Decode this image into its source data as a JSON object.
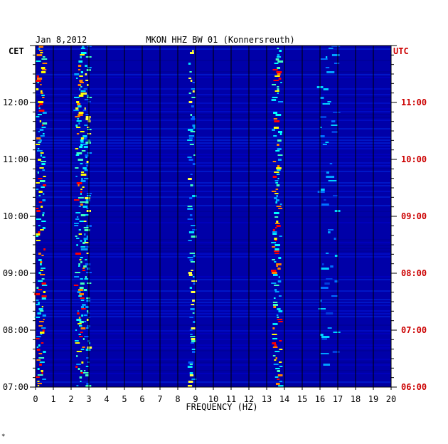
{
  "chart_data": {
    "type": "heatmap",
    "date_label": "Jan 8,2012",
    "title": "MKON HHZ BW 01 (Konnersreuth)",
    "xlabel": "FREQUENCY (HZ)",
    "left_axis_label": "CET",
    "right_axis_label": "UTC",
    "xlim": [
      0,
      20
    ],
    "x_ticks": [
      "0",
      "1",
      "2",
      "3",
      "4",
      "5",
      "6",
      "7",
      "8",
      "9",
      "10",
      "11",
      "12",
      "13",
      "14",
      "15",
      "16",
      "17",
      "18",
      "19",
      "20"
    ],
    "left_time_range": [
      "07:00",
      "13:00"
    ],
    "left_ticks": [
      "07:00",
      "08:00",
      "09:00",
      "10:00",
      "11:00",
      "12:00"
    ],
    "right_ticks": [
      "06:00",
      "07:00",
      "08:00",
      "09:00",
      "10:00",
      "11:00"
    ],
    "grid": true,
    "background_color": "#0000a8",
    "grid_color": "#000000",
    "left_label_color": "#000000",
    "right_label_color": "#cc0000",
    "dominant_bands_hz": [
      {
        "freq": 0.3,
        "intensity": "high"
      },
      {
        "freq": 2.5,
        "intensity": "high"
      },
      {
        "freq": 2.9,
        "intensity": "medium"
      },
      {
        "freq": 8.8,
        "intensity": "medium"
      },
      {
        "freq": 13.6,
        "intensity": "high"
      },
      {
        "freq": 16.5,
        "intensity": "low"
      }
    ]
  },
  "footer_mark": "*"
}
